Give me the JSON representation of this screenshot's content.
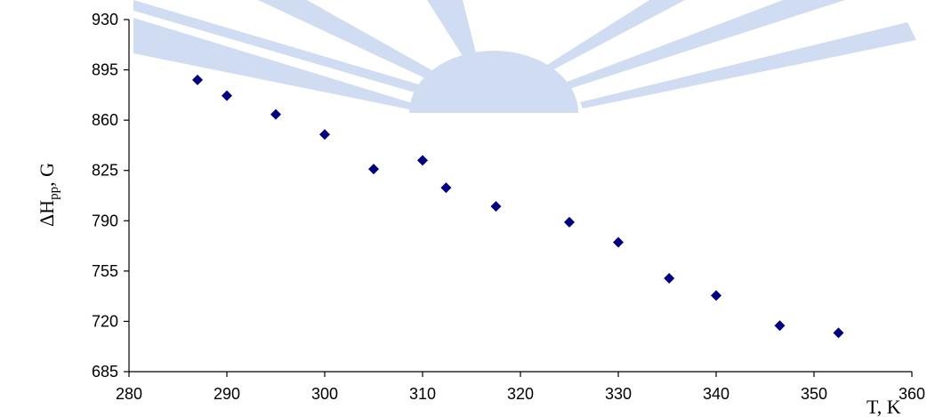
{
  "colors": {
    "background": "#ffffff",
    "marker": "#000080",
    "axis": "#000000",
    "watermark": "#c8d7ef"
  },
  "chart_data": {
    "type": "scatter",
    "title": "",
    "xlabel": "T, K",
    "ylabel_main": "ΔH",
    "ylabel_sub": "pp",
    "ylabel_unit": ", G",
    "xlim": [
      280,
      360
    ],
    "ylim": [
      685,
      930
    ],
    "x_ticks": [
      280,
      290,
      300,
      310,
      320,
      330,
      340,
      350,
      360
    ],
    "y_ticks": [
      685,
      720,
      755,
      790,
      825,
      860,
      895,
      930
    ],
    "grid": false,
    "legend": "none",
    "marker": "diamond",
    "series": [
      {
        "x": [
          287,
          290,
          295,
          300,
          305,
          310,
          312.4,
          317.5,
          325,
          330,
          335.2,
          340,
          346.5,
          352.5
        ],
        "y": [
          888,
          877,
          864,
          850,
          826,
          832,
          813,
          800,
          789,
          775,
          750,
          738,
          717,
          712
        ]
      }
    ]
  }
}
